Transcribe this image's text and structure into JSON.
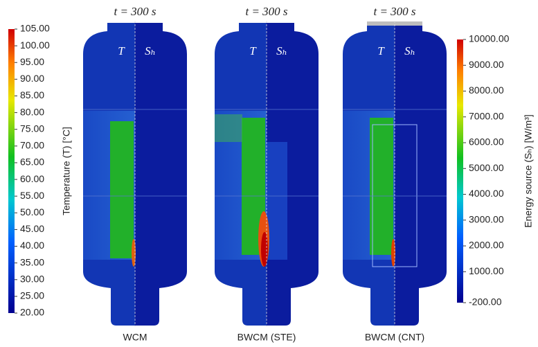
{
  "panels": [
    {
      "time_label": "t = 300 s",
      "left_label": "T",
      "right_label": "Sₕ",
      "caption": "WCM"
    },
    {
      "time_label": "t = 300 s",
      "left_label": "T",
      "right_label": "Sₕ",
      "caption": "BWCM (STE)"
    },
    {
      "time_label": "t = 300 s",
      "left_label": "T",
      "right_label": "Sₕ",
      "caption": "BWCM (CNT)"
    }
  ],
  "temperature_bar": {
    "title": "Temperature (T) [°C]",
    "ticks": [
      "105.00",
      "100.00",
      "95.00",
      "90.00",
      "85.00",
      "80.00",
      "75.00",
      "70.00",
      "65.00",
      "60.00",
      "55.00",
      "50.00",
      "45.00",
      "40.00",
      "35.00",
      "30.00",
      "25.00",
      "20.00"
    ]
  },
  "energy_bar": {
    "title": "Energy source (Sₕ) [W/m³]",
    "ticks": [
      "10000.00",
      "9000.00",
      "8000.00",
      "7000.00",
      "6000.00",
      "5000.00",
      "4000.00",
      "3000.00",
      "2000.00",
      "1000.00",
      "-200.00"
    ]
  }
}
